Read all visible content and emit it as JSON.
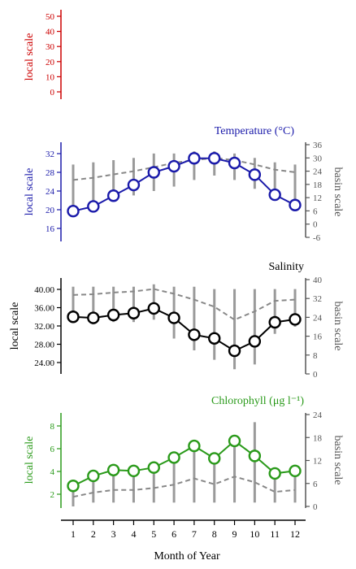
{
  "chart_data": {
    "type": "line",
    "x_axis": {
      "label": "Month of Year",
      "ticks": [
        1,
        2,
        3,
        4,
        5,
        6,
        7,
        8,
        9,
        10,
        11,
        12
      ]
    },
    "panels": [
      {
        "name": "",
        "title": "",
        "color": "#cc0000",
        "left_label": "local scale",
        "left_ticks": [
          "50",
          "40",
          "30",
          "20",
          "10",
          "0"
        ],
        "left_range": [
          0,
          50
        ],
        "right_label": "",
        "right_ticks": [],
        "local_series": [],
        "basin_series": [],
        "basin_ranges": []
      },
      {
        "name": "temperature",
        "title": "Temperature (°C)",
        "color": "#1a1aaa",
        "left_label": "local scale",
        "left_ticks": [
          "32",
          "28",
          "24",
          "20",
          "16"
        ],
        "left_range": [
          16,
          32
        ],
        "right_label": "basin scale",
        "right_ticks": [
          "36",
          "30",
          "24",
          "18",
          "12",
          "6",
          "0",
          "-6"
        ],
        "right_range": [
          -6,
          36
        ],
        "local_series": [
          19.7,
          20.7,
          23.0,
          25.3,
          28.0,
          29.3,
          31.0,
          31.0,
          30.0,
          27.5,
          23.2,
          21.0
        ],
        "basin_series": [
          20.0,
          21.0,
          22.5,
          24.0,
          25.8,
          27.8,
          29.0,
          30.0,
          29.0,
          27.0,
          24.7,
          23.5
        ],
        "basin_ranges": [
          [
            8,
            27
          ],
          [
            9,
            28
          ],
          [
            11,
            29
          ],
          [
            13,
            30
          ],
          [
            15,
            32
          ],
          [
            17,
            32
          ],
          [
            20,
            33
          ],
          [
            22,
            33
          ],
          [
            20,
            32
          ],
          [
            16,
            30
          ],
          [
            12,
            28
          ],
          [
            9,
            27
          ]
        ]
      },
      {
        "name": "salinity",
        "title": "Salinity",
        "color": "#000000",
        "left_label": "local scale",
        "left_ticks": [
          "40.00",
          "36.00",
          "32.00",
          "28.00",
          "24.00"
        ],
        "left_range": [
          22,
          42
        ],
        "right_label": "basin scale",
        "right_ticks": [
          "40",
          "32",
          "24",
          "16",
          "8",
          "0"
        ],
        "right_range": [
          0,
          40
        ],
        "local_series": [
          34.5,
          34.2,
          35.0,
          35.5,
          36.8,
          34.2,
          29.6,
          28.6,
          25.2,
          27.8,
          33.0,
          33.8
        ],
        "basin_series": [
          33.5,
          33.8,
          34.5,
          35.0,
          36.0,
          34.0,
          31.5,
          28.5,
          23.0,
          26.5,
          31.0,
          31.5
        ],
        "basin_ranges": [
          [
            22,
            37
          ],
          [
            21,
            37
          ],
          [
            22,
            37
          ],
          [
            22,
            37
          ],
          [
            23,
            38
          ],
          [
            15,
            37
          ],
          [
            10,
            37
          ],
          [
            6,
            36
          ],
          [
            2,
            36
          ],
          [
            4,
            36
          ],
          [
            17,
            36
          ],
          [
            20,
            36
          ]
        ]
      },
      {
        "name": "chlorophyll",
        "title": "Chlorophyll (μg l⁻¹)",
        "color": "#2a9a1a",
        "left_label": "local scale",
        "left_ticks": [
          "8",
          "6",
          "4",
          "2"
        ],
        "left_range": [
          1,
          9.2
        ],
        "right_label": "basin scale",
        "right_ticks": [
          "24",
          "18",
          "12",
          "6",
          "0"
        ],
        "right_range": [
          0,
          24
        ],
        "local_series": [
          2.0,
          3.2,
          3.9,
          3.8,
          4.2,
          5.4,
          6.8,
          5.3,
          7.4,
          5.6,
          3.5,
          3.8
        ],
        "basin_series": [
          2.5,
          3.6,
          4.3,
          4.3,
          4.8,
          5.7,
          7.3,
          5.8,
          7.8,
          6.3,
          3.8,
          4.3
        ],
        "basin_ranges": [
          [
            0,
            6
          ],
          [
            1,
            8
          ],
          [
            1,
            10
          ],
          [
            1,
            10
          ],
          [
            1,
            11
          ],
          [
            1,
            13
          ],
          [
            1,
            16
          ],
          [
            1,
            14
          ],
          [
            1,
            17
          ],
          [
            1,
            22
          ],
          [
            1,
            10
          ],
          [
            1,
            8
          ]
        ]
      }
    ]
  }
}
